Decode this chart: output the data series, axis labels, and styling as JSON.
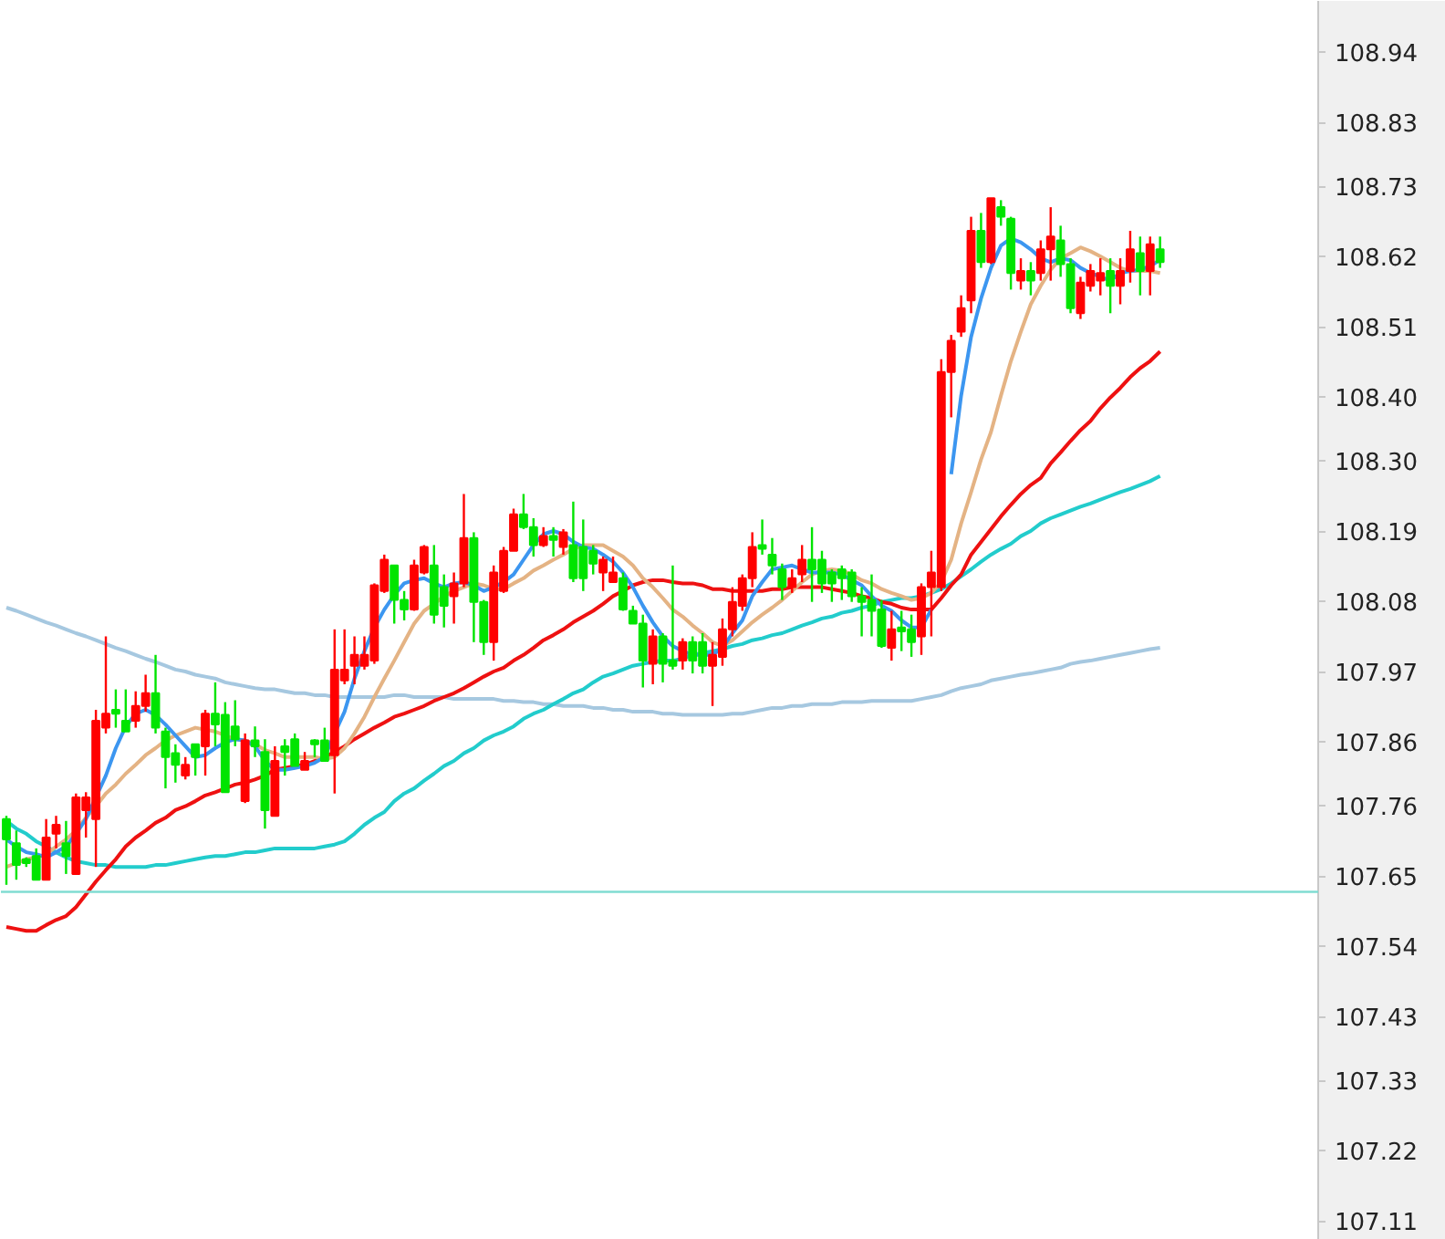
{
  "chart_data": {
    "type": "candlestick",
    "categories": [
      null,
      null,
      null,
      null,
      null,
      null,
      null,
      null,
      null,
      null,
      null,
      null,
      null,
      null,
      null,
      null,
      null,
      null,
      null,
      null,
      null,
      null,
      null,
      null,
      null,
      null,
      null,
      null,
      null,
      null,
      null,
      null,
      null,
      null,
      null,
      null,
      null,
      null,
      null,
      null,
      null,
      null,
      null,
      null,
      null,
      null,
      null,
      null,
      null,
      null,
      null,
      null,
      null,
      null,
      null,
      null,
      null,
      null,
      null,
      null,
      null,
      null,
      null,
      null,
      null,
      null,
      null,
      null,
      null,
      null,
      null,
      null,
      null,
      null,
      null,
      null,
      null,
      null,
      null,
      null,
      null,
      null,
      null,
      null,
      null,
      null,
      null,
      null,
      null,
      null,
      null,
      null,
      null,
      null,
      null,
      null,
      null,
      null,
      null,
      null,
      null,
      null,
      null,
      null,
      null,
      null,
      null,
      null,
      null,
      null,
      null,
      null,
      null,
      null,
      null,
      null,
      null
    ],
    "ohlc": [
      [
        107.739,
        107.744,
        107.636,
        107.707
      ],
      [
        107.701,
        107.721,
        107.644,
        107.667
      ],
      [
        107.676,
        107.679,
        107.664,
        107.67
      ],
      [
        107.681,
        107.693,
        107.644,
        107.644
      ],
      [
        107.644,
        107.739,
        107.644,
        107.71
      ],
      [
        107.716,
        107.744,
        107.693,
        107.73
      ],
      [
        107.701,
        107.736,
        107.653,
        107.681
      ],
      [
        107.653,
        107.779,
        107.653,
        107.773
      ],
      [
        107.753,
        107.781,
        107.71,
        107.773
      ],
      [
        107.739,
        107.91,
        107.664,
        107.893
      ],
      [
        107.882,
        108.025,
        107.873,
        107.904
      ],
      [
        107.91,
        107.942,
        107.882,
        107.904
      ],
      [
        107.893,
        107.942,
        107.876,
        107.876
      ],
      [
        107.893,
        107.939,
        107.882,
        107.916
      ],
      [
        107.916,
        107.965,
        107.907,
        107.936
      ],
      [
        107.936,
        107.996,
        107.873,
        107.882
      ],
      [
        107.876,
        107.882,
        107.787,
        107.836
      ],
      [
        107.842,
        107.856,
        107.796,
        107.824
      ],
      [
        107.807,
        107.836,
        107.801,
        107.824
      ],
      [
        107.856,
        107.856,
        107.807,
        107.836
      ],
      [
        107.853,
        107.91,
        107.807,
        107.904
      ],
      [
        107.904,
        107.953,
        107.853,
        107.887
      ],
      [
        107.902,
        107.922,
        107.781,
        107.781
      ],
      [
        107.884,
        107.925,
        107.853,
        107.864
      ],
      [
        107.767,
        107.873,
        107.764,
        107.862
      ],
      [
        107.862,
        107.884,
        107.836,
        107.853
      ],
      [
        107.844,
        107.864,
        107.724,
        107.753
      ],
      [
        107.744,
        107.853,
        107.744,
        107.83
      ],
      [
        107.853,
        107.864,
        107.807,
        107.844
      ],
      [
        107.864,
        107.873,
        107.822,
        107.822
      ],
      [
        107.816,
        107.844,
        107.816,
        107.83
      ],
      [
        107.862,
        107.864,
        107.836,
        107.856
      ],
      [
        107.862,
        107.882,
        107.83,
        107.83
      ],
      [
        107.839,
        108.036,
        107.779,
        107.973
      ],
      [
        107.956,
        108.036,
        107.95,
        107.973
      ],
      [
        107.979,
        108.025,
        107.95,
        107.996
      ],
      [
        107.979,
        108.025,
        107.973,
        107.996
      ],
      [
        107.987,
        108.108,
        107.982,
        108.105
      ],
      [
        108.096,
        108.153,
        108.093,
        108.145
      ],
      [
        108.136,
        108.136,
        108.045,
        108.082
      ],
      [
        108.082,
        108.096,
        108.05,
        108.067
      ],
      [
        108.067,
        108.145,
        108.065,
        108.136
      ],
      [
        108.125,
        108.168,
        108.122,
        108.165
      ],
      [
        108.136,
        108.168,
        108.045,
        108.059
      ],
      [
        108.102,
        108.122,
        108.039,
        108.073
      ],
      [
        108.088,
        108.125,
        108.045,
        108.108
      ],
      [
        108.108,
        108.248,
        108.102,
        108.179
      ],
      [
        108.179,
        108.188,
        108.016,
        108.079
      ],
      [
        108.079,
        108.082,
        107.996,
        108.016
      ],
      [
        108.016,
        108.136,
        107.987,
        108.125
      ],
      [
        108.096,
        108.165,
        108.093,
        108.159
      ],
      [
        108.159,
        108.225,
        108.159,
        108.216
      ],
      [
        108.216,
        108.248,
        108.193,
        108.196
      ],
      [
        108.196,
        108.21,
        108.15,
        108.168
      ],
      [
        108.168,
        108.196,
        108.165,
        108.182
      ],
      [
        108.182,
        108.196,
        108.15,
        108.176
      ],
      [
        108.165,
        108.193,
        108.153,
        108.188
      ],
      [
        108.168,
        108.236,
        108.11,
        108.116
      ],
      [
        108.165,
        108.208,
        108.096,
        108.116
      ],
      [
        108.159,
        108.168,
        108.122,
        108.139
      ],
      [
        108.125,
        108.15,
        108.096,
        108.145
      ],
      [
        108.11,
        108.15,
        108.11,
        108.125
      ],
      [
        108.116,
        108.125,
        108.065,
        108.067
      ],
      [
        108.065,
        108.073,
        108.045,
        108.045
      ],
      [
        108.045,
        108.059,
        107.945,
        107.987
      ],
      [
        107.982,
        108.036,
        107.95,
        108.025
      ],
      [
        108.025,
        108.03,
        107.953,
        107.982
      ],
      [
        107.987,
        108.136,
        107.973,
        107.979
      ],
      [
        107.987,
        108.022,
        107.973,
        108.016
      ],
      [
        108.016,
        108.025,
        107.967,
        107.987
      ],
      [
        108.016,
        108.03,
        107.967,
        107.979
      ],
      [
        107.979,
        108.016,
        107.916,
        107.996
      ],
      [
        107.993,
        108.053,
        107.979,
        108.036
      ],
      [
        108.036,
        108.102,
        108.025,
        108.079
      ],
      [
        108.073,
        108.122,
        108.065,
        108.116
      ],
      [
        108.116,
        108.188,
        108.102,
        108.165
      ],
      [
        108.168,
        108.208,
        108.153,
        108.162
      ],
      [
        108.153,
        108.179,
        108.122,
        108.136
      ],
      [
        108.13,
        108.139,
        108.082,
        108.102
      ],
      [
        108.102,
        108.13,
        108.093,
        108.116
      ],
      [
        108.122,
        108.168,
        108.11,
        108.145
      ],
      [
        108.145,
        108.196,
        108.079,
        108.13
      ],
      [
        108.145,
        108.159,
        108.093,
        108.108
      ],
      [
        108.125,
        108.13,
        108.079,
        108.108
      ],
      [
        108.13,
        108.136,
        108.082,
        108.116
      ],
      [
        108.125,
        108.13,
        108.079,
        108.088
      ],
      [
        108.088,
        108.102,
        108.025,
        108.079
      ],
      [
        108.082,
        108.122,
        108.025,
        108.065
      ],
      [
        108.067,
        108.082,
        108.007,
        108.01
      ],
      [
        108.007,
        108.065,
        107.987,
        108.036
      ],
      [
        108.039,
        108.065,
        108.002,
        108.033
      ],
      [
        108.036,
        108.059,
        107.993,
        108.016
      ],
      [
        108.025,
        108.108,
        107.996,
        108.102
      ],
      [
        108.102,
        108.159,
        108.025,
        108.125
      ],
      [
        108.102,
        108.459,
        108.096,
        108.439
      ],
      [
        108.439,
        108.497,
        108.368,
        108.488
      ],
      [
        108.502,
        108.559,
        108.494,
        108.539
      ],
      [
        108.551,
        108.682,
        108.531,
        108.66
      ],
      [
        108.66,
        108.688,
        108.602,
        108.611
      ],
      [
        108.611,
        108.711,
        108.608,
        108.711
      ],
      [
        108.697,
        108.708,
        108.668,
        108.682
      ],
      [
        108.679,
        108.682,
        108.568,
        108.594
      ],
      [
        108.582,
        108.617,
        108.568,
        108.597
      ],
      [
        108.597,
        108.611,
        108.559,
        108.582
      ],
      [
        108.594,
        108.645,
        108.582,
        108.631
      ],
      [
        108.631,
        108.697,
        108.582,
        108.651
      ],
      [
        108.645,
        108.668,
        108.588,
        108.608
      ],
      [
        108.608,
        108.617,
        108.531,
        108.539
      ],
      [
        108.531,
        108.588,
        108.522,
        108.579
      ],
      [
        108.574,
        108.608,
        108.565,
        108.597
      ],
      [
        108.582,
        108.617,
        108.559,
        108.594
      ],
      [
        108.597,
        108.617,
        108.531,
        108.574
      ],
      [
        108.574,
        108.617,
        108.545,
        108.597
      ],
      [
        108.597,
        108.66,
        108.579,
        108.631
      ],
      [
        108.625,
        108.651,
        108.559,
        108.597
      ],
      [
        108.597,
        108.651,
        108.559,
        108.639
      ],
      [
        108.631,
        108.651,
        108.602,
        108.611
      ]
    ],
    "colors": [
      "#00e400",
      "#00e400",
      "#00e400",
      "#00e400",
      "#ff0000",
      "#ff0000",
      "#00e400",
      "#ff0000",
      "#ff0000",
      "#ff0000",
      "#ff0000",
      "#00e400",
      "#00e400",
      "#ff0000",
      "#ff0000",
      "#00e400",
      "#00e400",
      "#00e400",
      "#ff0000",
      "#00e400",
      "#ff0000",
      "#00e400",
      "#00e400",
      "#00e400",
      "#ff0000",
      "#00e400",
      "#00e400",
      "#ff0000",
      "#00e400",
      "#00e400",
      "#ff0000",
      "#00e400",
      "#00e400",
      "#ff0000",
      "#ff0000",
      "#ff0000",
      "#ff0000",
      "#ff0000",
      "#ff0000",
      "#00e400",
      "#00e400",
      "#ff0000",
      "#ff0000",
      "#00e400",
      "#00e400",
      "#ff0000",
      "#ff0000",
      "#00e400",
      "#00e400",
      "#ff0000",
      "#ff0000",
      "#ff0000",
      "#00e400",
      "#00e400",
      "#ff0000",
      "#00e400",
      "#ff0000",
      "#00e400",
      "#00e400",
      "#00e400",
      "#ff0000",
      "#ff0000",
      "#00e400",
      "#00e400",
      "#00e400",
      "#ff0000",
      "#00e400",
      "#00e400",
      "#ff0000",
      "#00e400",
      "#00e400",
      "#ff0000",
      "#ff0000",
      "#ff0000",
      "#ff0000",
      "#ff0000",
      "#00e400",
      "#00e400",
      "#00e400",
      "#ff0000",
      "#ff0000",
      "#00e400",
      "#00e400",
      "#00e400",
      "#00e400",
      "#00e400",
      "#00e400",
      "#00e400",
      "#00e400",
      "#ff0000",
      "#00e400",
      "#00e400",
      "#ff0000",
      "#ff0000",
      "#ff0000",
      "#ff0000",
      "#ff0000",
      "#ff0000",
      "#00e400",
      "#ff0000",
      "#00e400",
      "#00e400",
      "#ff0000",
      "#00e400",
      "#ff0000",
      "#ff0000",
      "#00e400",
      "#00e400",
      "#ff0000",
      "#ff0000",
      "#ff0000",
      "#00e400",
      "#ff0000",
      "#ff0000",
      "#00e400",
      "#ff0000",
      "#00e400"
    ],
    "series": [
      {
        "type": "line",
        "color": "#a6c8e0",
        "values": [
          108.07,
          108.065,
          108.059,
          108.053,
          108.047,
          108.042,
          108.036,
          108.03,
          108.025,
          108.019,
          108.013,
          108.007,
          108.002,
          107.996,
          107.99,
          107.985,
          107.979,
          107.973,
          107.97,
          107.965,
          107.962,
          107.959,
          107.953,
          107.95,
          107.947,
          107.944,
          107.942,
          107.942,
          107.939,
          107.936,
          107.936,
          107.933,
          107.933,
          107.93,
          107.93,
          107.93,
          107.93,
          107.93,
          107.93,
          107.933,
          107.933,
          107.93,
          107.93,
          107.93,
          107.93,
          107.927,
          107.927,
          107.927,
          107.927,
          107.927,
          107.924,
          107.924,
          107.922,
          107.922,
          107.919,
          107.919,
          107.916,
          107.916,
          107.916,
          107.913,
          107.913,
          107.91,
          107.91,
          107.907,
          107.907,
          107.907,
          107.904,
          107.904,
          107.902,
          107.902,
          107.902,
          107.902,
          107.902,
          107.904,
          107.904,
          107.907,
          107.91,
          107.913,
          107.913,
          107.916,
          107.916,
          107.919,
          107.919,
          107.919,
          107.922,
          107.922,
          107.922,
          107.924,
          107.924,
          107.924,
          107.924,
          107.924,
          107.927,
          107.93,
          107.933,
          107.939,
          107.944,
          107.947,
          107.95,
          107.956,
          107.959,
          107.962,
          107.965,
          107.967,
          107.97,
          107.973,
          107.976,
          107.982,
          107.985,
          107.987,
          107.99,
          107.993,
          107.996,
          107.999,
          108.002,
          108.005,
          108.007
        ]
      },
      {
        "type": "line",
        "color": "#22cccc",
        "values": [
          107.736,
          107.724,
          107.716,
          107.704,
          107.696,
          107.687,
          107.679,
          107.673,
          107.67,
          107.667,
          107.667,
          107.664,
          107.664,
          107.664,
          107.664,
          107.667,
          107.667,
          107.67,
          107.673,
          107.676,
          107.679,
          107.681,
          107.681,
          107.684,
          107.687,
          107.687,
          107.69,
          107.693,
          107.693,
          107.693,
          107.693,
          107.693,
          107.696,
          107.699,
          107.704,
          107.716,
          107.73,
          107.741,
          107.75,
          107.767,
          107.779,
          107.787,
          107.799,
          107.81,
          107.822,
          107.83,
          107.842,
          107.85,
          107.862,
          107.87,
          107.876,
          107.884,
          107.896,
          107.904,
          107.91,
          107.919,
          107.927,
          107.936,
          107.942,
          107.953,
          107.962,
          107.967,
          107.973,
          107.979,
          107.982,
          107.985,
          107.987,
          107.987,
          107.99,
          107.996,
          107.999,
          108.002,
          108.005,
          108.01,
          108.013,
          108.019,
          108.022,
          108.027,
          108.03,
          108.036,
          108.042,
          108.047,
          108.053,
          108.056,
          108.062,
          108.065,
          108.07,
          108.073,
          108.079,
          108.082,
          108.085,
          108.085,
          108.088,
          108.093,
          108.099,
          108.108,
          108.119,
          108.13,
          108.142,
          108.153,
          108.162,
          108.17,
          108.182,
          108.19,
          108.202,
          108.21,
          108.216,
          108.222,
          108.228,
          108.233,
          108.239,
          108.245,
          108.251,
          108.256,
          108.262,
          108.268,
          108.276
        ]
      },
      {
        "type": "line",
        "color": "#ee1111",
        "values": [
          107.57,
          107.567,
          107.564,
          107.564,
          107.573,
          107.581,
          107.587,
          107.601,
          107.621,
          107.641,
          107.659,
          107.676,
          107.696,
          107.71,
          107.721,
          107.733,
          107.741,
          107.753,
          107.759,
          107.767,
          107.776,
          107.781,
          107.787,
          107.793,
          107.796,
          107.801,
          107.807,
          107.816,
          107.819,
          107.822,
          107.824,
          107.83,
          107.836,
          107.844,
          107.853,
          107.864,
          107.873,
          107.882,
          107.89,
          107.899,
          107.904,
          107.91,
          107.916,
          107.924,
          107.93,
          107.936,
          107.944,
          107.953,
          107.962,
          107.97,
          107.976,
          107.987,
          107.996,
          108.007,
          108.019,
          108.027,
          108.036,
          108.047,
          108.056,
          108.065,
          108.076,
          108.088,
          108.096,
          108.105,
          108.11,
          108.113,
          108.113,
          108.11,
          108.108,
          108.108,
          108.105,
          108.099,
          108.099,
          108.096,
          108.096,
          108.096,
          108.096,
          108.099,
          108.099,
          108.102,
          108.102,
          108.102,
          108.102,
          108.099,
          108.096,
          108.093,
          108.088,
          108.085,
          108.079,
          108.076,
          108.07,
          108.067,
          108.067,
          108.067,
          108.085,
          108.105,
          108.122,
          108.153,
          108.173,
          108.193,
          108.213,
          108.231,
          108.248,
          108.262,
          108.273,
          108.296,
          108.313,
          108.331,
          108.348,
          108.362,
          108.382,
          108.399,
          108.414,
          108.431,
          108.445,
          108.456,
          108.471
        ]
      },
      {
        "type": "line",
        "color": "#e4b384",
        "values": [
          107.664,
          107.67,
          107.676,
          107.679,
          107.684,
          107.696,
          107.707,
          107.721,
          107.741,
          107.759,
          107.779,
          107.793,
          107.81,
          107.824,
          107.839,
          107.85,
          107.862,
          107.87,
          107.876,
          107.882,
          107.879,
          107.876,
          107.87,
          107.864,
          107.862,
          107.856,
          107.847,
          107.842,
          107.836,
          107.836,
          107.836,
          107.836,
          107.833,
          107.836,
          107.85,
          107.873,
          107.899,
          107.93,
          107.959,
          107.987,
          108.016,
          108.045,
          108.065,
          108.076,
          108.088,
          108.096,
          108.102,
          108.108,
          108.105,
          108.099,
          108.099,
          108.108,
          108.116,
          108.128,
          108.136,
          108.145,
          108.153,
          108.162,
          108.168,
          108.168,
          108.168,
          108.159,
          108.15,
          108.136,
          108.116,
          108.102,
          108.085,
          108.067,
          108.056,
          108.042,
          108.03,
          108.016,
          108.01,
          108.019,
          108.033,
          108.047,
          108.059,
          108.07,
          108.082,
          108.096,
          108.11,
          108.122,
          108.128,
          108.13,
          108.128,
          108.122,
          108.113,
          108.108,
          108.099,
          108.093,
          108.088,
          108.082,
          108.085,
          108.093,
          108.11,
          108.145,
          108.202,
          108.251,
          108.302,
          108.345,
          108.402,
          108.456,
          108.502,
          108.545,
          108.574,
          108.599,
          108.617,
          108.625,
          108.634,
          108.628,
          108.62,
          108.611,
          108.602,
          108.597,
          108.597,
          108.597,
          108.594
        ]
      },
      {
        "type": "line",
        "color": "#3c96f0",
        "values": [
          107.707,
          107.696,
          107.687,
          107.684,
          107.679,
          107.687,
          107.696,
          107.716,
          107.739,
          107.773,
          107.807,
          107.85,
          107.884,
          107.904,
          107.91,
          107.902,
          107.887,
          107.87,
          107.853,
          107.836,
          107.839,
          107.85,
          107.859,
          107.864,
          107.862,
          107.853,
          107.83,
          107.816,
          107.816,
          107.819,
          107.822,
          107.827,
          107.836,
          107.873,
          107.907,
          107.959,
          108.002,
          108.039,
          108.067,
          108.09,
          108.108,
          108.113,
          108.116,
          108.108,
          108.102,
          108.108,
          108.11,
          108.105,
          108.096,
          108.102,
          108.11,
          108.122,
          108.145,
          108.168,
          108.185,
          108.19,
          108.185,
          108.173,
          108.165,
          108.162,
          108.153,
          108.142,
          108.125,
          108.102,
          108.073,
          108.047,
          108.025,
          108.01,
          108.002,
          107.996,
          107.996,
          107.996,
          108.007,
          108.03,
          108.05,
          108.088,
          108.11,
          108.13,
          108.133,
          108.136,
          108.13,
          108.125,
          108.125,
          108.125,
          108.122,
          108.113,
          108.105,
          108.088,
          108.073,
          108.065,
          108.05,
          108.039,
          108.039,
          108.067,
          null,
          108.279,
          108.402,
          108.494,
          108.554,
          108.602,
          108.637,
          108.648,
          108.642,
          108.631,
          108.617,
          108.611,
          108.617,
          108.614,
          108.602,
          108.594,
          108.588,
          108.582,
          108.594,
          108.597,
          108.599,
          108.605,
          108.614
        ]
      }
    ],
    "ylim": [
      107.08,
      109.02
    ],
    "yticks": [
      107.11,
      107.22,
      107.33,
      107.43,
      107.54,
      107.65,
      107.76,
      107.86,
      107.97,
      108.08,
      108.19,
      {
        "value": 108.3,
        "label": "108.30"
      },
      {
        "value": 108.4,
        "label": "108.40"
      },
      108.51,
      108.62,
      108.73,
      108.83,
      108.94
    ],
    "tick_labels": "y",
    "ref_lines": [
      {
        "axis": "y",
        "value": 107.625,
        "color": "#80dcd2"
      }
    ]
  }
}
